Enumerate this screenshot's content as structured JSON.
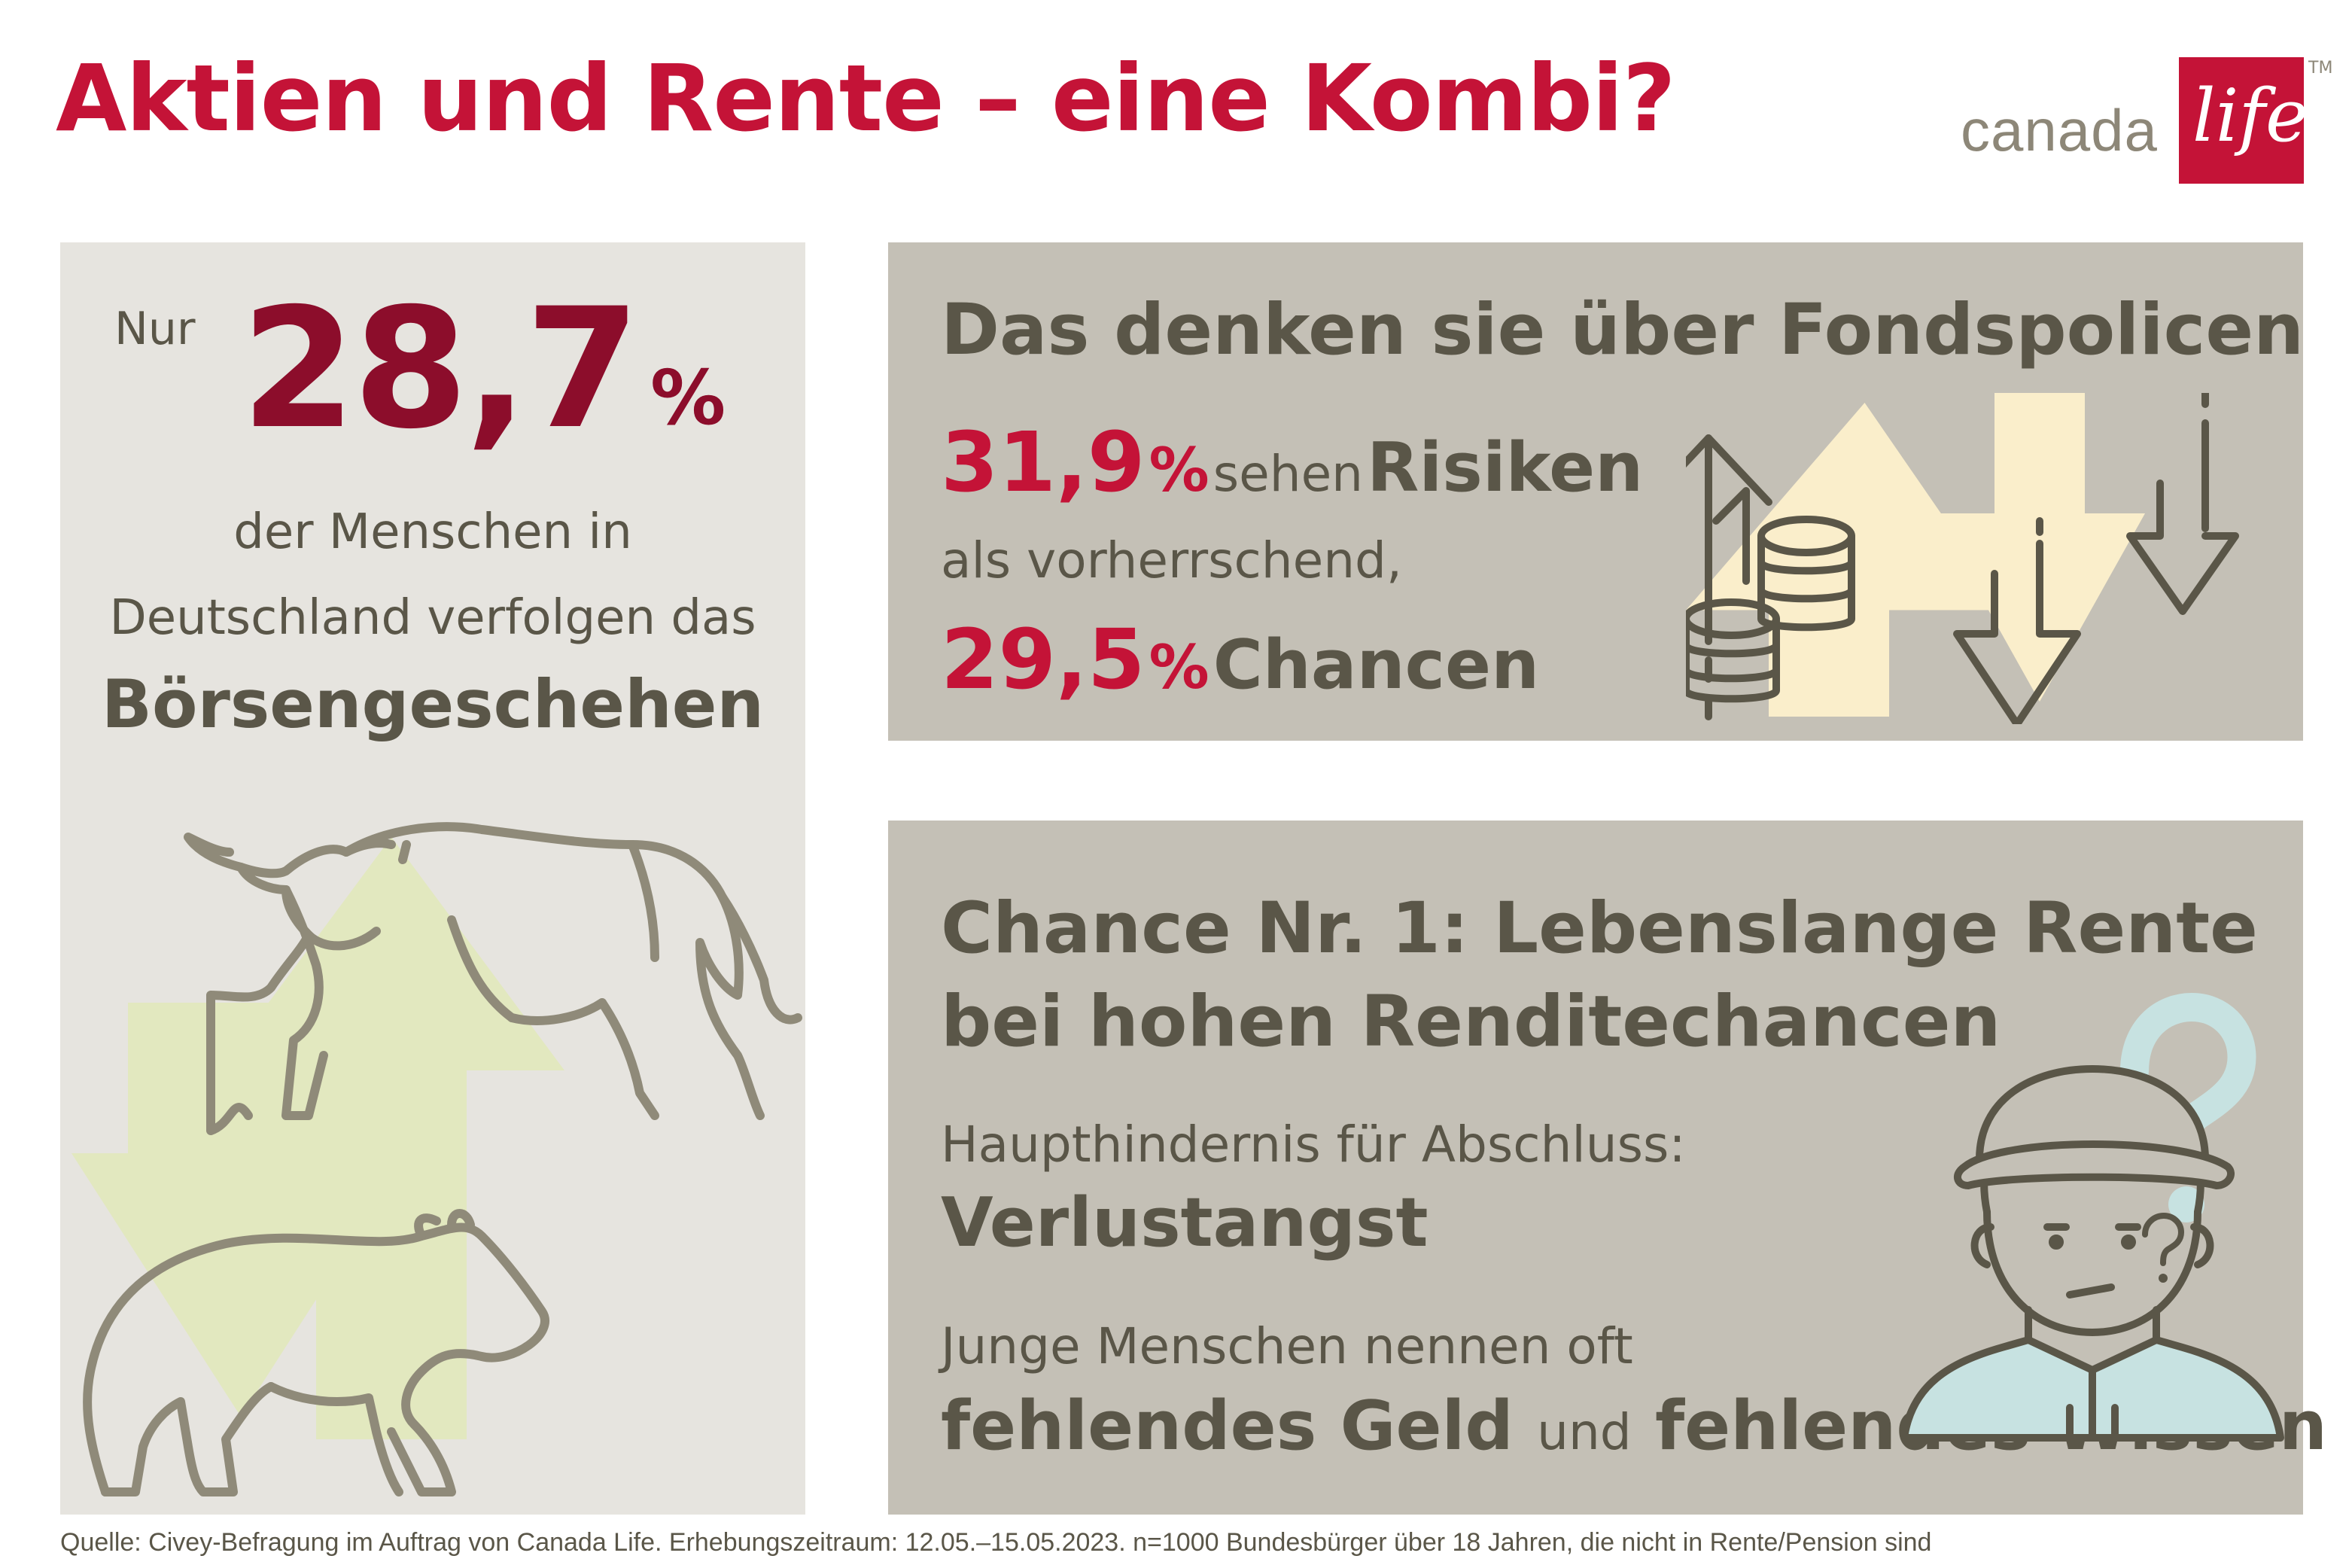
{
  "title": "Aktien und Rente – eine Kombi?",
  "logo": {
    "text": "canada",
    "box_text": "life",
    "tm": "TM",
    "brand_color": "#c41337"
  },
  "left_panel": {
    "prefix": "Nur",
    "value": "28,7",
    "unit": "%",
    "line1": "der Menschen in",
    "line2": "Deutschland verfolgen das",
    "bold": "Börsengeschehen",
    "icons": [
      "bull-icon",
      "bear-icon",
      "arrow-up-icon",
      "arrow-down-icon"
    ]
  },
  "fondspolicen": {
    "heading": "Das denken sie über Fondspolicen",
    "risk_value": "31,9",
    "risk_unit": "%",
    "risk_text": "sehen",
    "risk_bold": "Risiken",
    "line2": "als vorherrschend,",
    "chance_value": "29,5",
    "chance_unit": "%",
    "chance_bold": "Chancen",
    "icons": [
      "coins-arrow-up-icon",
      "arrows-down-icon"
    ]
  },
  "chance": {
    "heading_line1": "Chance Nr. 1: Lebenslange Rente",
    "heading_line2": "bei hohen Renditechancen",
    "label1": "Haupthindernis für Abschluss:",
    "bold1": "Verlustangst",
    "label2": "Junge Menschen nennen oft",
    "bold2a": "fehlendes Geld",
    "mid": "und",
    "bold2b": "fehlendes Wissen",
    "icons": [
      "confused-person-icon",
      "question-mark-icon"
    ]
  },
  "source": "Quelle: Civey-Befragung im Auftrag von Canada Life. Erhebungszeitraum: 12.05.–15.05.2023. n=1000 Bundesbürger über 18 Jahren, die nicht in Rente/Pension sind",
  "colors": {
    "red": "#c41337",
    "dark_red": "#8c0d2b",
    "panel_light": "#e6e4df",
    "panel_dark": "#c4c0b6",
    "text": "#5a5648",
    "green": "#e2e8bf",
    "yellow": "#faeecb",
    "mint": "#c7e2e1"
  }
}
